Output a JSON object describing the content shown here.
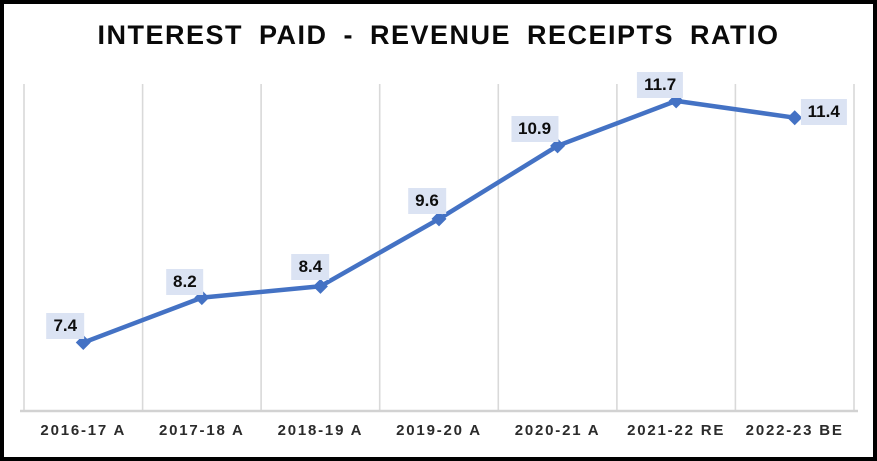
{
  "chart_data": {
    "type": "line",
    "title": "INTEREST PAID - REVENUE RECEIPTS RATIO",
    "categories": [
      "2016-17 A",
      "2017-18 A",
      "2018-19 A",
      "2019-20 A",
      "2020-21 A",
      "2021-22 RE",
      "2022-23 BE"
    ],
    "values": [
      7.4,
      8.2,
      8.4,
      9.6,
      10.9,
      11.7,
      11.4
    ],
    "data_labels": [
      "7.4",
      "8.2",
      "8.4",
      "9.6",
      "10.9",
      "11.7",
      "11.4"
    ],
    "xlabel": "",
    "ylabel": "",
    "ylim": [
      6.2,
      12.0
    ],
    "grid": "vertical-only",
    "legend": "none",
    "marker": "diamond",
    "colors": {
      "line": "#4472C4",
      "marker": "#4472C4",
      "data_label_bg": "#DBE3F3",
      "data_label_text": "#0d0d0d",
      "gridline": "#D9D9D9",
      "axis_line": "#D2D2D2",
      "title": "#0a0a0a",
      "tick_label": "#2b2b2b",
      "background": "#FFFFFF",
      "frame_border": "#000000"
    }
  }
}
